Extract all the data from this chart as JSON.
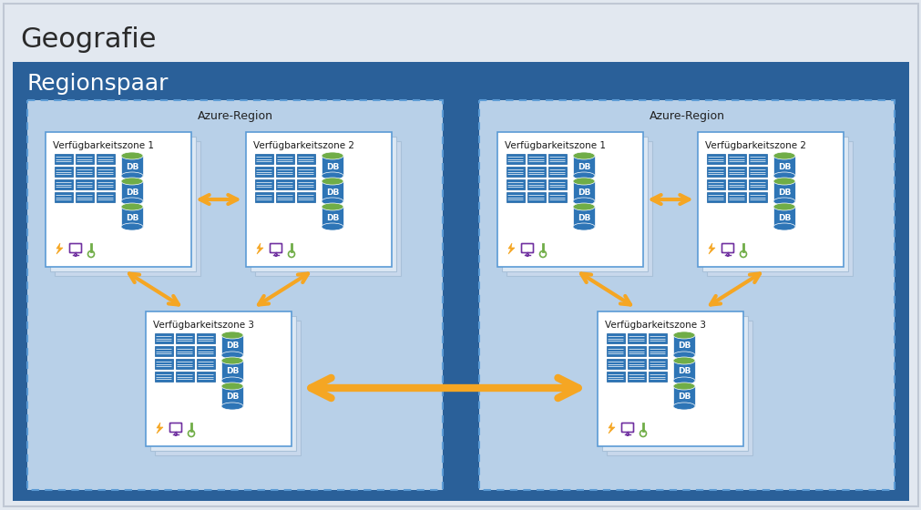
{
  "title": "Geografie",
  "regionspaar_label": "Regionspaar",
  "azure_region_label": "Azure-Region",
  "zone_labels": [
    "Verfügbarkeitszone 1",
    "Verfügbarkeitszone 2",
    "Verfügbarkeitszone 3"
  ],
  "outer_bg": "#e2e8f0",
  "regionspaar_bg": "#2a6099",
  "regionspaar_text": "#ffffff",
  "azure_region_bg": "#b8d0e8",
  "azure_region_border": "#5b9bd5",
  "zone_bg": "#ffffff",
  "zone_border": "#5b9bd5",
  "zone_shadow1": "#dce8f4",
  "zone_shadow2": "#c8d8ec",
  "arrow_color": "#f5a623",
  "server_color": "#2e75b6",
  "server_border": "#ffffff",
  "db_top_color": "#70ad47",
  "db_body_color": "#2e75b6",
  "icon_lightning": "#f5a623",
  "icon_monitor": "#7030a0",
  "icon_thermo": "#70ad47"
}
